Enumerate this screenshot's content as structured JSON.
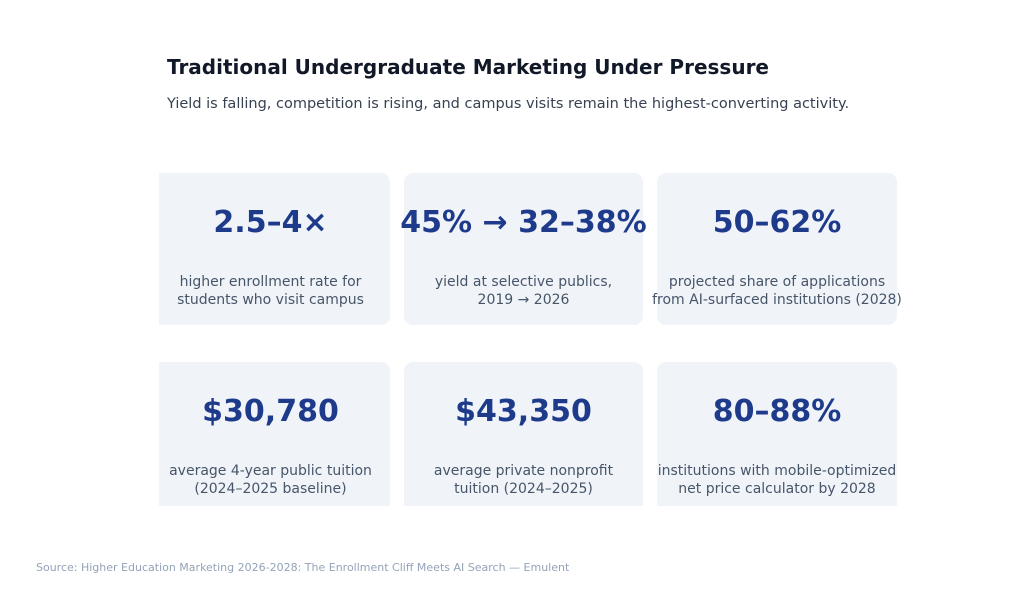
{
  "title": "Traditional Undergraduate Marketing Under Pressure",
  "subtitle": "Yield is falling, competition is rising, and campus visits remain the highest-converting activity.",
  "cards": [
    {
      "value": "2.5–4×",
      "label": "higher enrollment rate for\nstudents who visit campus"
    },
    {
      "value": "45% → 32–38%",
      "label": "yield at selective publics,\n2019 → 2026"
    },
    {
      "value": "50–62%",
      "label": "projected share of applications\nfrom AI-surfaced institutions (2028)"
    },
    {
      "value": "$30,780",
      "label": "average 4-year public tuition\n(2024–2025 baseline)"
    },
    {
      "value": "$43,350",
      "label": "average private nonprofit\ntuition (2024–2025)"
    },
    {
      "value": "80–88%",
      "label": "institutions with mobile-optimized\nnet price calculator by 2028"
    }
  ],
  "source": "Source: Higher Education Marketing 2026-2028: The Enrollment Cliff Meets AI Search — Emulent",
  "colors": {
    "accent": "#1e3a8a",
    "card_bg": "#f0f4f9"
  }
}
